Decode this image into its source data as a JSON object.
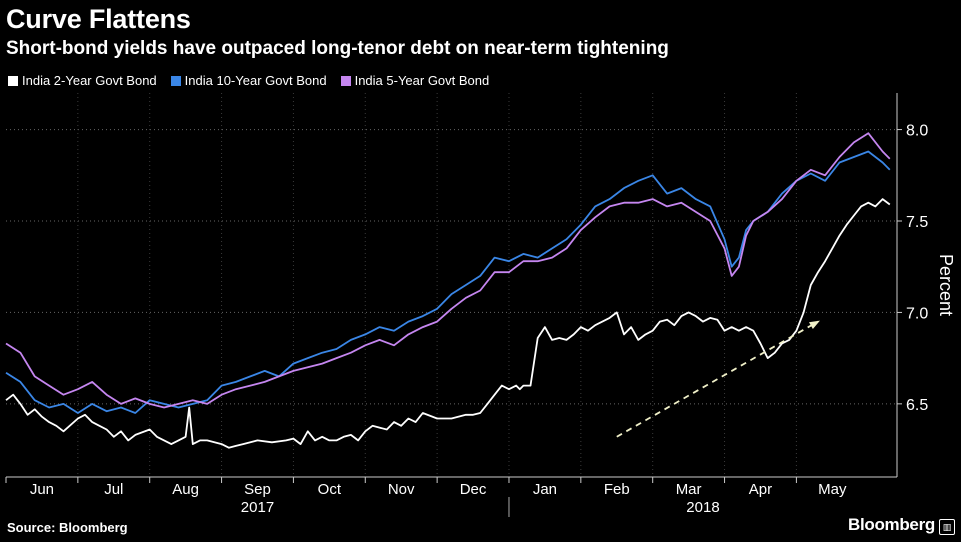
{
  "header": {
    "title": "Curve Flattens",
    "subtitle": "Short-bond yields have outpaced long-tenor debt on near-term tightening"
  },
  "footer": {
    "source": "Source: Bloomberg",
    "brand": "Bloomberg",
    "brand_icon": "bloomberg-chart-icon"
  },
  "colors": {
    "background": "#000000",
    "two_year": "#ffffff",
    "ten_year": "#3a86e6",
    "five_year": "#c586f0",
    "arrow": "#f0f0c8"
  },
  "chart_data": {
    "type": "line",
    "title": "Curve Flattens",
    "subtitle": "Short-bond yields have outpaced long-tenor debt on near-term tightening",
    "xlabel": "",
    "ylabel": "Percent",
    "ylim": [
      6.1,
      8.2
    ],
    "y_ticks": [
      "6.5",
      "7.0",
      "7.5",
      "8.0"
    ],
    "x_ticks": [
      "Jun",
      "Jul",
      "Aug",
      "Sep",
      "Oct",
      "Nov",
      "Dec",
      "Jan",
      "Feb",
      "Mar",
      "Apr",
      "May"
    ],
    "year_labels": [
      "2017",
      "2018"
    ],
    "legend_position": "top-left",
    "annotation": "dashed arrow indicating upward trend in 2-year yield",
    "x_range": [
      0,
      12.4
    ],
    "series": [
      {
        "name": "India 2-Year Govt Bond",
        "color": "#ffffff",
        "x": [
          0,
          0.1,
          0.2,
          0.3,
          0.4,
          0.5,
          0.6,
          0.7,
          0.8,
          1.0,
          1.1,
          1.2,
          1.3,
          1.4,
          1.5,
          1.6,
          1.7,
          1.8,
          2.0,
          2.1,
          2.2,
          2.3,
          2.4,
          2.5,
          2.55,
          2.6,
          2.7,
          2.8,
          3.0,
          3.1,
          3.2,
          3.3,
          3.5,
          3.7,
          3.9,
          4.0,
          4.1,
          4.2,
          4.3,
          4.4,
          4.5,
          4.6,
          4.7,
          4.8,
          4.9,
          5.0,
          5.1,
          5.3,
          5.4,
          5.5,
          5.6,
          5.7,
          5.8,
          6.0,
          6.2,
          6.4,
          6.5,
          6.6,
          6.7,
          6.8,
          6.9,
          7.0,
          7.1,
          7.15,
          7.2,
          7.3,
          7.4,
          7.5,
          7.6,
          7.7,
          7.8,
          7.9,
          8.0,
          8.1,
          8.2,
          8.3,
          8.4,
          8.5,
          8.6,
          8.7,
          8.8,
          8.9,
          9.0,
          9.1,
          9.2,
          9.3,
          9.4,
          9.5,
          9.6,
          9.7,
          9.8,
          9.9,
          10.0,
          10.1,
          10.2,
          10.3,
          10.4,
          10.5,
          10.6,
          10.7,
          10.8,
          10.9,
          11.0,
          11.1,
          11.2,
          11.3,
          11.4,
          11.5,
          11.6,
          11.7,
          11.8,
          11.9,
          12.0,
          12.1,
          12.2,
          12.3
        ],
        "values": [
          6.52,
          6.55,
          6.5,
          6.44,
          6.47,
          6.43,
          6.4,
          6.38,
          6.35,
          6.42,
          6.44,
          6.4,
          6.38,
          6.36,
          6.32,
          6.35,
          6.3,
          6.33,
          6.36,
          6.32,
          6.3,
          6.28,
          6.3,
          6.32,
          6.48,
          6.28,
          6.3,
          6.3,
          6.28,
          6.26,
          6.27,
          6.28,
          6.3,
          6.29,
          6.3,
          6.31,
          6.28,
          6.35,
          6.3,
          6.32,
          6.3,
          6.3,
          6.32,
          6.33,
          6.3,
          6.35,
          6.38,
          6.36,
          6.4,
          6.38,
          6.42,
          6.4,
          6.45,
          6.42,
          6.42,
          6.44,
          6.44,
          6.45,
          6.5,
          6.55,
          6.6,
          6.58,
          6.6,
          6.58,
          6.6,
          6.6,
          6.86,
          6.92,
          6.85,
          6.86,
          6.85,
          6.88,
          6.92,
          6.9,
          6.93,
          6.95,
          6.97,
          7.0,
          6.88,
          6.92,
          6.85,
          6.88,
          6.9,
          6.95,
          6.96,
          6.93,
          6.98,
          7.0,
          6.98,
          6.95,
          6.97,
          6.96,
          6.9,
          6.92,
          6.9,
          6.92,
          6.9,
          6.83,
          6.75,
          6.78,
          6.83,
          6.85,
          6.9,
          7.0,
          7.15,
          7.22,
          7.28,
          7.35,
          7.42,
          7.48,
          7.53,
          7.58,
          7.6,
          7.58,
          7.62,
          7.59
        ]
      },
      {
        "name": "India 10-Year Govt Bond",
        "color": "#3a86e6",
        "x": [
          0,
          0.2,
          0.4,
          0.6,
          0.8,
          1.0,
          1.2,
          1.4,
          1.6,
          1.8,
          2.0,
          2.2,
          2.4,
          2.6,
          2.8,
          3.0,
          3.2,
          3.4,
          3.6,
          3.8,
          4.0,
          4.2,
          4.4,
          4.6,
          4.8,
          5.0,
          5.2,
          5.4,
          5.6,
          5.8,
          6.0,
          6.2,
          6.4,
          6.6,
          6.8,
          7.0,
          7.2,
          7.4,
          7.6,
          7.8,
          8.0,
          8.2,
          8.4,
          8.6,
          8.8,
          9.0,
          9.2,
          9.4,
          9.6,
          9.8,
          10.0,
          10.1,
          10.2,
          10.3,
          10.4,
          10.6,
          10.8,
          11.0,
          11.2,
          11.4,
          11.6,
          11.8,
          12.0,
          12.2,
          12.3
        ],
        "values": [
          6.67,
          6.62,
          6.52,
          6.48,
          6.5,
          6.45,
          6.5,
          6.46,
          6.48,
          6.45,
          6.52,
          6.5,
          6.48,
          6.5,
          6.52,
          6.6,
          6.62,
          6.65,
          6.68,
          6.65,
          6.72,
          6.75,
          6.78,
          6.8,
          6.85,
          6.88,
          6.92,
          6.9,
          6.95,
          6.98,
          7.02,
          7.1,
          7.15,
          7.2,
          7.3,
          7.28,
          7.32,
          7.3,
          7.35,
          7.4,
          7.48,
          7.58,
          7.62,
          7.68,
          7.72,
          7.75,
          7.65,
          7.68,
          7.62,
          7.58,
          7.4,
          7.25,
          7.3,
          7.45,
          7.5,
          7.55,
          7.65,
          7.72,
          7.76,
          7.72,
          7.82,
          7.85,
          7.88,
          7.82,
          7.78
        ]
      },
      {
        "name": "India 5-Year Govt Bond",
        "color": "#c586f0",
        "x": [
          0,
          0.2,
          0.4,
          0.6,
          0.8,
          1.0,
          1.2,
          1.4,
          1.6,
          1.8,
          2.0,
          2.2,
          2.4,
          2.6,
          2.8,
          3.0,
          3.2,
          3.4,
          3.6,
          3.8,
          4.0,
          4.2,
          4.4,
          4.6,
          4.8,
          5.0,
          5.2,
          5.4,
          5.6,
          5.8,
          6.0,
          6.2,
          6.4,
          6.6,
          6.8,
          7.0,
          7.2,
          7.4,
          7.6,
          7.8,
          8.0,
          8.2,
          8.4,
          8.6,
          8.8,
          9.0,
          9.2,
          9.4,
          9.6,
          9.8,
          10.0,
          10.1,
          10.2,
          10.3,
          10.4,
          10.6,
          10.8,
          11.0,
          11.2,
          11.4,
          11.6,
          11.8,
          12.0,
          12.2,
          12.3
        ],
        "values": [
          6.83,
          6.78,
          6.65,
          6.6,
          6.55,
          6.58,
          6.62,
          6.55,
          6.5,
          6.53,
          6.5,
          6.48,
          6.5,
          6.52,
          6.5,
          6.55,
          6.58,
          6.6,
          6.62,
          6.65,
          6.68,
          6.7,
          6.72,
          6.75,
          6.78,
          6.82,
          6.85,
          6.82,
          6.88,
          6.92,
          6.95,
          7.02,
          7.08,
          7.12,
          7.22,
          7.22,
          7.28,
          7.28,
          7.3,
          7.35,
          7.45,
          7.52,
          7.58,
          7.6,
          7.6,
          7.62,
          7.58,
          7.6,
          7.55,
          7.5,
          7.35,
          7.2,
          7.25,
          7.42,
          7.5,
          7.55,
          7.62,
          7.72,
          7.78,
          7.75,
          7.85,
          7.93,
          7.98,
          7.88,
          7.84
        ]
      }
    ]
  }
}
